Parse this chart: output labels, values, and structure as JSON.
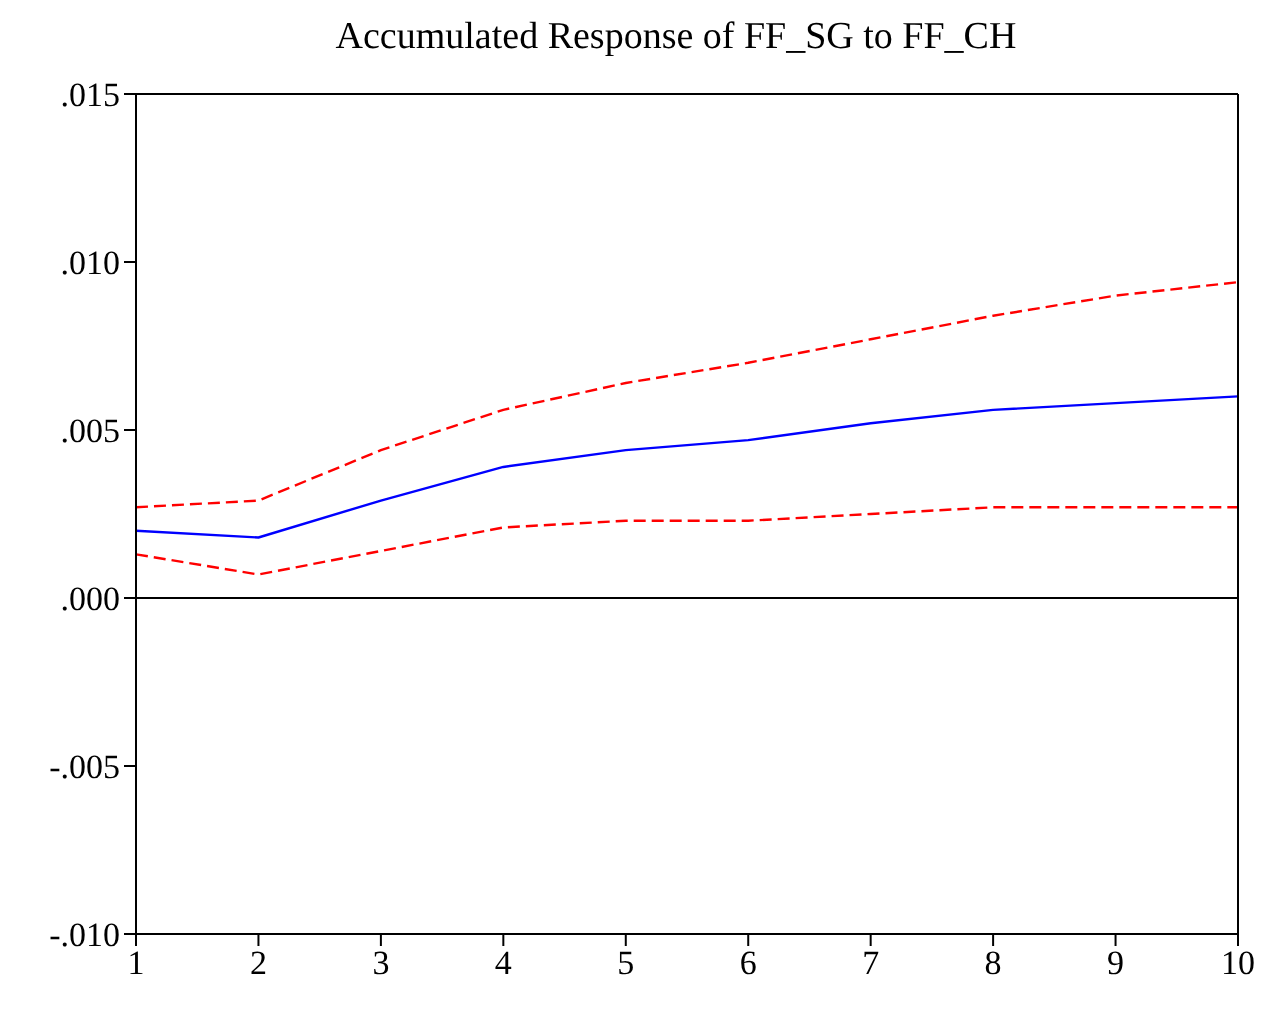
{
  "chart_data": {
    "type": "line",
    "title": "Accumulated Response of FF_SG to FF_CH",
    "x": [
      1,
      2,
      3,
      4,
      5,
      6,
      7,
      8,
      9,
      10
    ],
    "series": [
      {
        "color": "#0000ff",
        "line_style": "solid",
        "values": [
          0.002,
          0.0018,
          0.0029,
          0.0039,
          0.0044,
          0.0047,
          0.0052,
          0.0056,
          0.0058,
          0.006
        ]
      },
      {
        "color": "#ff0000",
        "line_style": "dashed",
        "values": [
          0.0027,
          0.0029,
          0.0044,
          0.0056,
          0.0064,
          0.007,
          0.0077,
          0.0084,
          0.009,
          0.0094
        ]
      },
      {
        "color": "#ff0000",
        "line_style": "dashed",
        "values": [
          0.0013,
          0.0007,
          0.0014,
          0.0021,
          0.0023,
          0.0023,
          0.0025,
          0.0027,
          0.0027,
          0.0027
        ]
      }
    ],
    "xlim": [
      1,
      10
    ],
    "xticks": [
      1,
      2,
      3,
      4,
      5,
      6,
      7,
      8,
      9,
      10
    ],
    "ylim": [
      -0.01,
      0.015
    ],
    "yticks": [
      {
        "value": -0.01,
        "label": "-.010"
      },
      {
        "value": -0.005,
        "label": "-.005"
      },
      {
        "value": 0,
        "label": ".000"
      },
      {
        "value": 0.005,
        "label": ".005"
      },
      {
        "value": 0.01,
        "label": ".010"
      },
      {
        "value": 0.015,
        "label": ".015"
      }
    ],
    "ref_lines": [
      {
        "axis": "y",
        "value": 0,
        "color": "#000000",
        "line_style": "solid"
      }
    ],
    "grid": false,
    "legend": false,
    "marker": "none"
  }
}
